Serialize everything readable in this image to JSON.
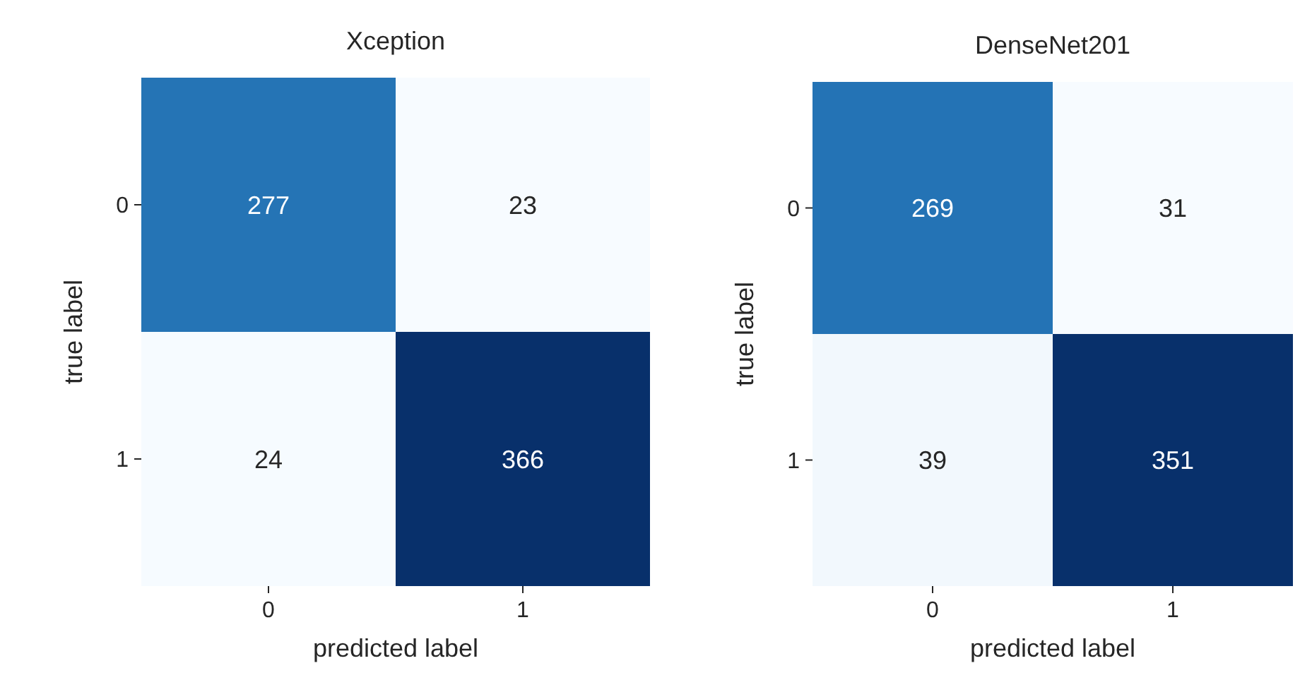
{
  "chart_data": [
    {
      "type": "heatmap",
      "title": "Xception",
      "xlabel": "predicted label",
      "ylabel": "true label",
      "categories": [
        "0",
        "1"
      ],
      "y_categories": [
        "0",
        "1"
      ],
      "cells": [
        [
          277,
          23
        ],
        [
          24,
          366
        ]
      ],
      "data_labels": true
    },
    {
      "type": "heatmap",
      "title": "DenseNet201",
      "xlabel": "predicted label",
      "ylabel": "true label",
      "categories": [
        "0",
        "1"
      ],
      "y_categories": [
        "0",
        "1"
      ],
      "cells": [
        [
          269,
          31
        ],
        [
          39,
          351
        ]
      ],
      "data_labels": true
    }
  ]
}
